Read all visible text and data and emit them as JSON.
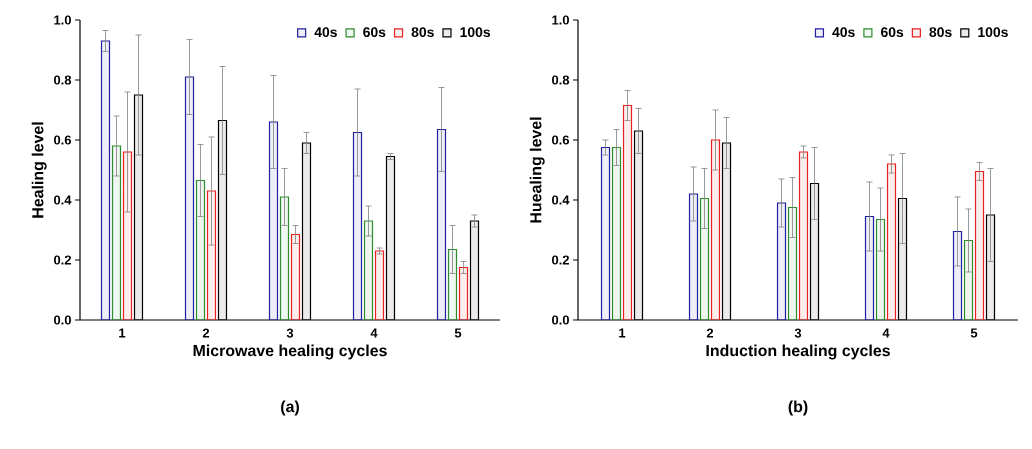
{
  "chart_data": [
    {
      "type": "bar",
      "categories": [
        "1",
        "2",
        "3",
        "4",
        "5"
      ],
      "xlabel": "Microwave healing cycles",
      "ylabel": "Healing level",
      "ylim": [
        0,
        1.0
      ],
      "yticks": [
        {
          "value": 0,
          "label": "0.0"
        },
        {
          "value": 0.2,
          "label": "0.2"
        },
        {
          "value": 0.4,
          "label": "0.4"
        },
        {
          "value": 0.6,
          "label": "0.6"
        },
        {
          "value": 0.8,
          "label": "0.8"
        },
        {
          "value": 1.0,
          "label": "1.0"
        }
      ],
      "legend": "top right",
      "annotations": [
        "(a)"
      ],
      "series": [
        {
          "name": "40s",
          "color": "#2020a0",
          "values": [
            0.93,
            0.81,
            0.66,
            0.625,
            0.635
          ],
          "errors": [
            0.035,
            0.125,
            0.155,
            0.145,
            0.14
          ]
        },
        {
          "name": "60s",
          "color": "#2e8b2e",
          "values": [
            0.58,
            0.465,
            0.41,
            0.33,
            0.235
          ],
          "errors": [
            0.1,
            0.12,
            0.095,
            0.05,
            0.08
          ]
        },
        {
          "name": "80s",
          "color": "#e82020",
          "values": [
            0.56,
            0.43,
            0.285,
            0.23,
            0.175
          ],
          "errors": [
            0.2,
            0.18,
            0.03,
            0.01,
            0.02
          ]
        },
        {
          "name": "100s",
          "color": "#000000",
          "values": [
            0.75,
            0.665,
            0.59,
            0.545,
            0.33
          ],
          "errors": [
            0.2,
            0.18,
            0.035,
            0.01,
            0.02
          ]
        }
      ]
    },
    {
      "type": "bar",
      "categories": [
        "1",
        "2",
        "3",
        "4",
        "5"
      ],
      "xlabel": "Induction healing cycles",
      "ylabel": "Huealing level",
      "ylim": [
        0,
        1.0
      ],
      "yticks": [
        {
          "value": 0,
          "label": "0.0"
        },
        {
          "value": 0.2,
          "label": "0.2"
        },
        {
          "value": 0.4,
          "label": "0.4"
        },
        {
          "value": 0.6,
          "label": "0.6"
        },
        {
          "value": 0.8,
          "label": "0.8"
        },
        {
          "value": 1.0,
          "label": "1.0"
        }
      ],
      "legend": "top right",
      "annotations": [
        "(b)"
      ],
      "series": [
        {
          "name": "40s",
          "color": "#2020a0",
          "values": [
            0.575,
            0.42,
            0.39,
            0.345,
            0.295
          ],
          "errors": [
            0.025,
            0.09,
            0.08,
            0.115,
            0.115
          ]
        },
        {
          "name": "60s",
          "color": "#2e8b2e",
          "values": [
            0.575,
            0.405,
            0.375,
            0.335,
            0.265
          ],
          "errors": [
            0.06,
            0.1,
            0.1,
            0.105,
            0.105
          ]
        },
        {
          "name": "80s",
          "color": "#e82020",
          "values": [
            0.715,
            0.6,
            0.56,
            0.52,
            0.495
          ],
          "errors": [
            0.05,
            0.1,
            0.02,
            0.03,
            0.03
          ]
        },
        {
          "name": "100s",
          "color": "#000000",
          "values": [
            0.63,
            0.59,
            0.455,
            0.405,
            0.35
          ],
          "errors": [
            0.075,
            0.085,
            0.12,
            0.15,
            0.155
          ]
        }
      ]
    }
  ]
}
